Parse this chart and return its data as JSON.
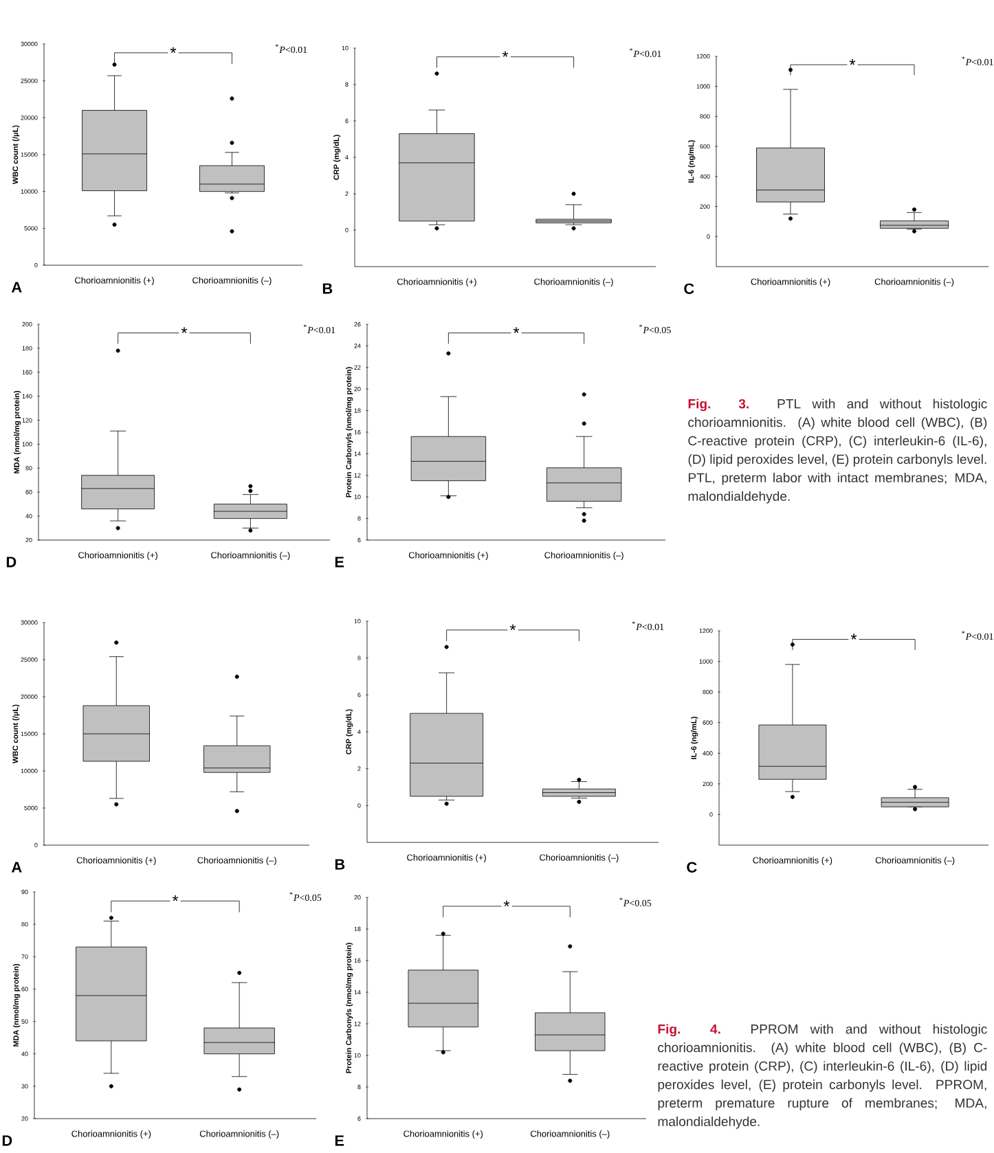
{
  "chart_data": [
    {
      "type": "box",
      "categories": [
        "Chorioamnionitis (+)",
        "Chorioamnionitis (–)"
      ],
      "ylabel": "WBC count (/μL)",
      "ylim": [
        0,
        30000
      ],
      "yticks": [
        0,
        5000,
        10000,
        15000,
        20000,
        25000,
        30000
      ],
      "color": "#c0c0c0",
      "annotations": [
        "*",
        "$^{*}$*P*<0.01",
        "A"
      ],
      "boxes": [
        {
          "low": 6700,
          "q1": 10100,
          "median": 15100,
          "q3": 21000,
          "high": 25700,
          "outliers": [
            5500,
            27200
          ]
        },
        {
          "low": 9800,
          "q1": 10000,
          "median": 11000,
          "q3": 13500,
          "high": 15300,
          "outliers": [
            4600,
            9100,
            16600,
            22600
          ]
        }
      ]
    },
    {
      "type": "box",
      "categories": [
        "Chorioamnionitis (+)",
        "Chorioamnionitis (–)"
      ],
      "ylabel": "CRP (mg/dL)",
      "ylim": [
        -2,
        10
      ],
      "yticks": [
        0,
        2,
        4,
        6,
        8,
        10
      ],
      "color": "#c0c0c0",
      "annotations": [
        "*",
        "$^{*}$*P*<0.01",
        "B"
      ],
      "boxes": [
        {
          "low": 0.3,
          "q1": 0.5,
          "median": 3.7,
          "q3": 5.3,
          "high": 6.6,
          "outliers": [
            0.1,
            8.6
          ]
        },
        {
          "low": 0.3,
          "q1": 0.4,
          "median": 0.5,
          "q3": 0.6,
          "high": 1.4,
          "outliers": [
            0.1,
            2.0
          ]
        }
      ]
    },
    {
      "type": "box",
      "categories": [
        "Chorioamnionitis (+)",
        "Chorioamnionitis (–)"
      ],
      "ylabel": "IL-6 (ng/mL)",
      "ylim": [
        -200,
        1200
      ],
      "yticks": [
        0,
        200,
        400,
        600,
        800,
        1000,
        1200
      ],
      "color": "#c0c0c0",
      "annotations": [
        "*",
        "$^{*}$*P*<0.01",
        "C"
      ],
      "boxes": [
        {
          "low": 150,
          "q1": 230,
          "median": 310,
          "q3": 590,
          "high": 980,
          "outliers": [
            120,
            1110
          ]
        },
        {
          "low": 50,
          "q1": 55,
          "median": 75,
          "q3": 105,
          "high": 160,
          "outliers": [
            35,
            180
          ]
        }
      ]
    },
    {
      "type": "box",
      "categories": [
        "Chorioamnionitis (+)",
        "Chorioamnionitis (–)"
      ],
      "ylabel": "MDA (nmol/mg protein)",
      "ylim": [
        20,
        200
      ],
      "yticks": [
        20,
        40,
        60,
        80,
        100,
        120,
        140,
        160,
        180,
        200
      ],
      "color": "#c0c0c0",
      "annotations": [
        "*",
        "$^{*}$*P*<0.01",
        "D"
      ],
      "boxes": [
        {
          "low": 36,
          "q1": 46,
          "median": 63,
          "q3": 74,
          "high": 111,
          "outliers": [
            30,
            178
          ]
        },
        {
          "low": 30,
          "q1": 38,
          "median": 44,
          "q3": 50,
          "high": 58,
          "outliers": [
            28,
            61,
            65
          ]
        }
      ]
    },
    {
      "type": "box",
      "categories": [
        "Chorioamnionitis (+)",
        "Chorioamnionitis (–)"
      ],
      "ylabel": "Protein Carbonyls (nmol/mg protein)",
      "ylim": [
        6,
        26
      ],
      "yticks": [
        6,
        8,
        10,
        12,
        14,
        16,
        18,
        20,
        22,
        24,
        26
      ],
      "color": "#c0c0c0",
      "annotations": [
        "*",
        "$^{*}$*P*<0.05",
        "E"
      ],
      "boxes": [
        {
          "low": 10.1,
          "q1": 11.5,
          "median": 13.3,
          "q3": 15.6,
          "high": 19.3,
          "outliers": [
            10.0,
            23.3
          ]
        },
        {
          "low": 9.0,
          "q1": 9.6,
          "median": 11.3,
          "q3": 12.7,
          "high": 15.6,
          "outliers": [
            7.8,
            8.4,
            16.8,
            19.5
          ]
        }
      ]
    },
    {
      "type": "other",
      "title": "Fig. 3.",
      "annotations": [
        "PTL with and without histologic chorioamnionitis. (A) white blood cell (WBC), (B) C-reactive protein (CRP), (C) interleukin-6 (IL-6), (D) lipid peroxides level, (E) protein carbonyls level. PTL, preterm labor with intact membranes; MDA, malondialdehyde."
      ]
    },
    {
      "type": "box",
      "categories": [
        "Chorioamnionitis (+)",
        "Chorioamnionitis (–)"
      ],
      "ylabel": "WBC count (/μL)",
      "ylim": [
        0,
        30000
      ],
      "yticks": [
        0,
        5000,
        10000,
        15000,
        20000,
        25000,
        30000
      ],
      "color": "#c0c0c0",
      "annotations": [
        "A"
      ],
      "boxes": [
        {
          "low": 6300,
          "q1": 11300,
          "median": 15000,
          "q3": 18800,
          "high": 25400,
          "outliers": [
            5500,
            27300
          ]
        },
        {
          "low": 7200,
          "q1": 9800,
          "median": 10400,
          "q3": 13400,
          "high": 17400,
          "outliers": [
            4600,
            22700
          ]
        }
      ]
    },
    {
      "type": "box",
      "categories": [
        "Chorioamnionitis (+)",
        "Chorioamnionitis (–)"
      ],
      "ylabel": "CRP (mg/dL)",
      "ylim": [
        -2,
        10
      ],
      "yticks": [
        0,
        2,
        4,
        6,
        8,
        10
      ],
      "color": "#c0c0c0",
      "annotations": [
        "*",
        "$^{*}$*P*<0.01",
        "B"
      ],
      "boxes": [
        {
          "low": 0.3,
          "q1": 0.5,
          "median": 2.3,
          "q3": 5.0,
          "high": 7.2,
          "outliers": [
            0.1,
            8.6
          ]
        },
        {
          "low": 0.4,
          "q1": 0.5,
          "median": 0.7,
          "q3": 0.9,
          "high": 1.3,
          "outliers": [
            0.2,
            1.4
          ]
        }
      ]
    },
    {
      "type": "box",
      "categories": [
        "Chorioamnionitis (+)",
        "Chorioamnionitis (–)"
      ],
      "ylabel": "IL-6 (ng/mL)",
      "ylim": [
        -200,
        1200
      ],
      "yticks": [
        0,
        200,
        400,
        600,
        800,
        1000,
        1200
      ],
      "color": "#c0c0c0",
      "annotations": [
        "*",
        "$^{*}$*P*<0.01",
        "C"
      ],
      "boxes": [
        {
          "low": 150,
          "q1": 230,
          "median": 315,
          "q3": 585,
          "high": 980,
          "outliers": [
            115,
            1110
          ]
        },
        {
          "low": 50,
          "q1": 50,
          "median": 80,
          "q3": 110,
          "high": 165,
          "outliers": [
            35,
            180
          ]
        }
      ]
    },
    {
      "type": "box",
      "categories": [
        "Chorioamnionitis (+)",
        "Chorioamnionitis (–)"
      ],
      "ylabel": "MDA (nmol/mg protein)",
      "ylim": [
        20,
        90
      ],
      "yticks": [
        20,
        30,
        40,
        50,
        60,
        70,
        80,
        90
      ],
      "color": "#c0c0c0",
      "annotations": [
        "*",
        "$^{*}$*P*<0.05",
        "D"
      ],
      "boxes": [
        {
          "low": 34,
          "q1": 44,
          "median": 58,
          "q3": 73,
          "high": 81,
          "outliers": [
            30,
            82
          ]
        },
        {
          "low": 33,
          "q1": 40,
          "median": 43.5,
          "q3": 48,
          "high": 62,
          "outliers": [
            29,
            65
          ]
        }
      ]
    },
    {
      "type": "box",
      "categories": [
        "Chorioamnionitis (+)",
        "Chorioamnionitis (–)"
      ],
      "ylabel": "Protein Carbonyls (nmol/mg protein)",
      "ylim": [
        6,
        20
      ],
      "yticks": [
        6,
        8,
        10,
        12,
        14,
        16,
        18,
        20
      ],
      "color": "#c0c0c0",
      "annotations": [
        "*",
        "$^{*}$*P*<0.05",
        "E"
      ],
      "boxes": [
        {
          "low": 10.3,
          "q1": 11.8,
          "median": 13.3,
          "q3": 15.4,
          "high": 17.6,
          "outliers": [
            10.2,
            17.7
          ]
        },
        {
          "low": 8.8,
          "q1": 10.3,
          "median": 11.3,
          "q3": 12.7,
          "high": 15.3,
          "outliers": [
            8.4,
            16.9
          ]
        }
      ]
    },
    {
      "type": "other",
      "title": "Fig. 4.",
      "annotations": [
        "PPROM with and without histologic chorioamnionitis. (A) white blood cell (WBC), (B) C-reactive protein (CRP), (C) interleukin-6 (IL-6), (D) lipid peroxides level, (E) protein carbonyls level. PPROM, preterm premature rupture of membranes; MDA, malondialdehyde."
      ]
    }
  ]
}
